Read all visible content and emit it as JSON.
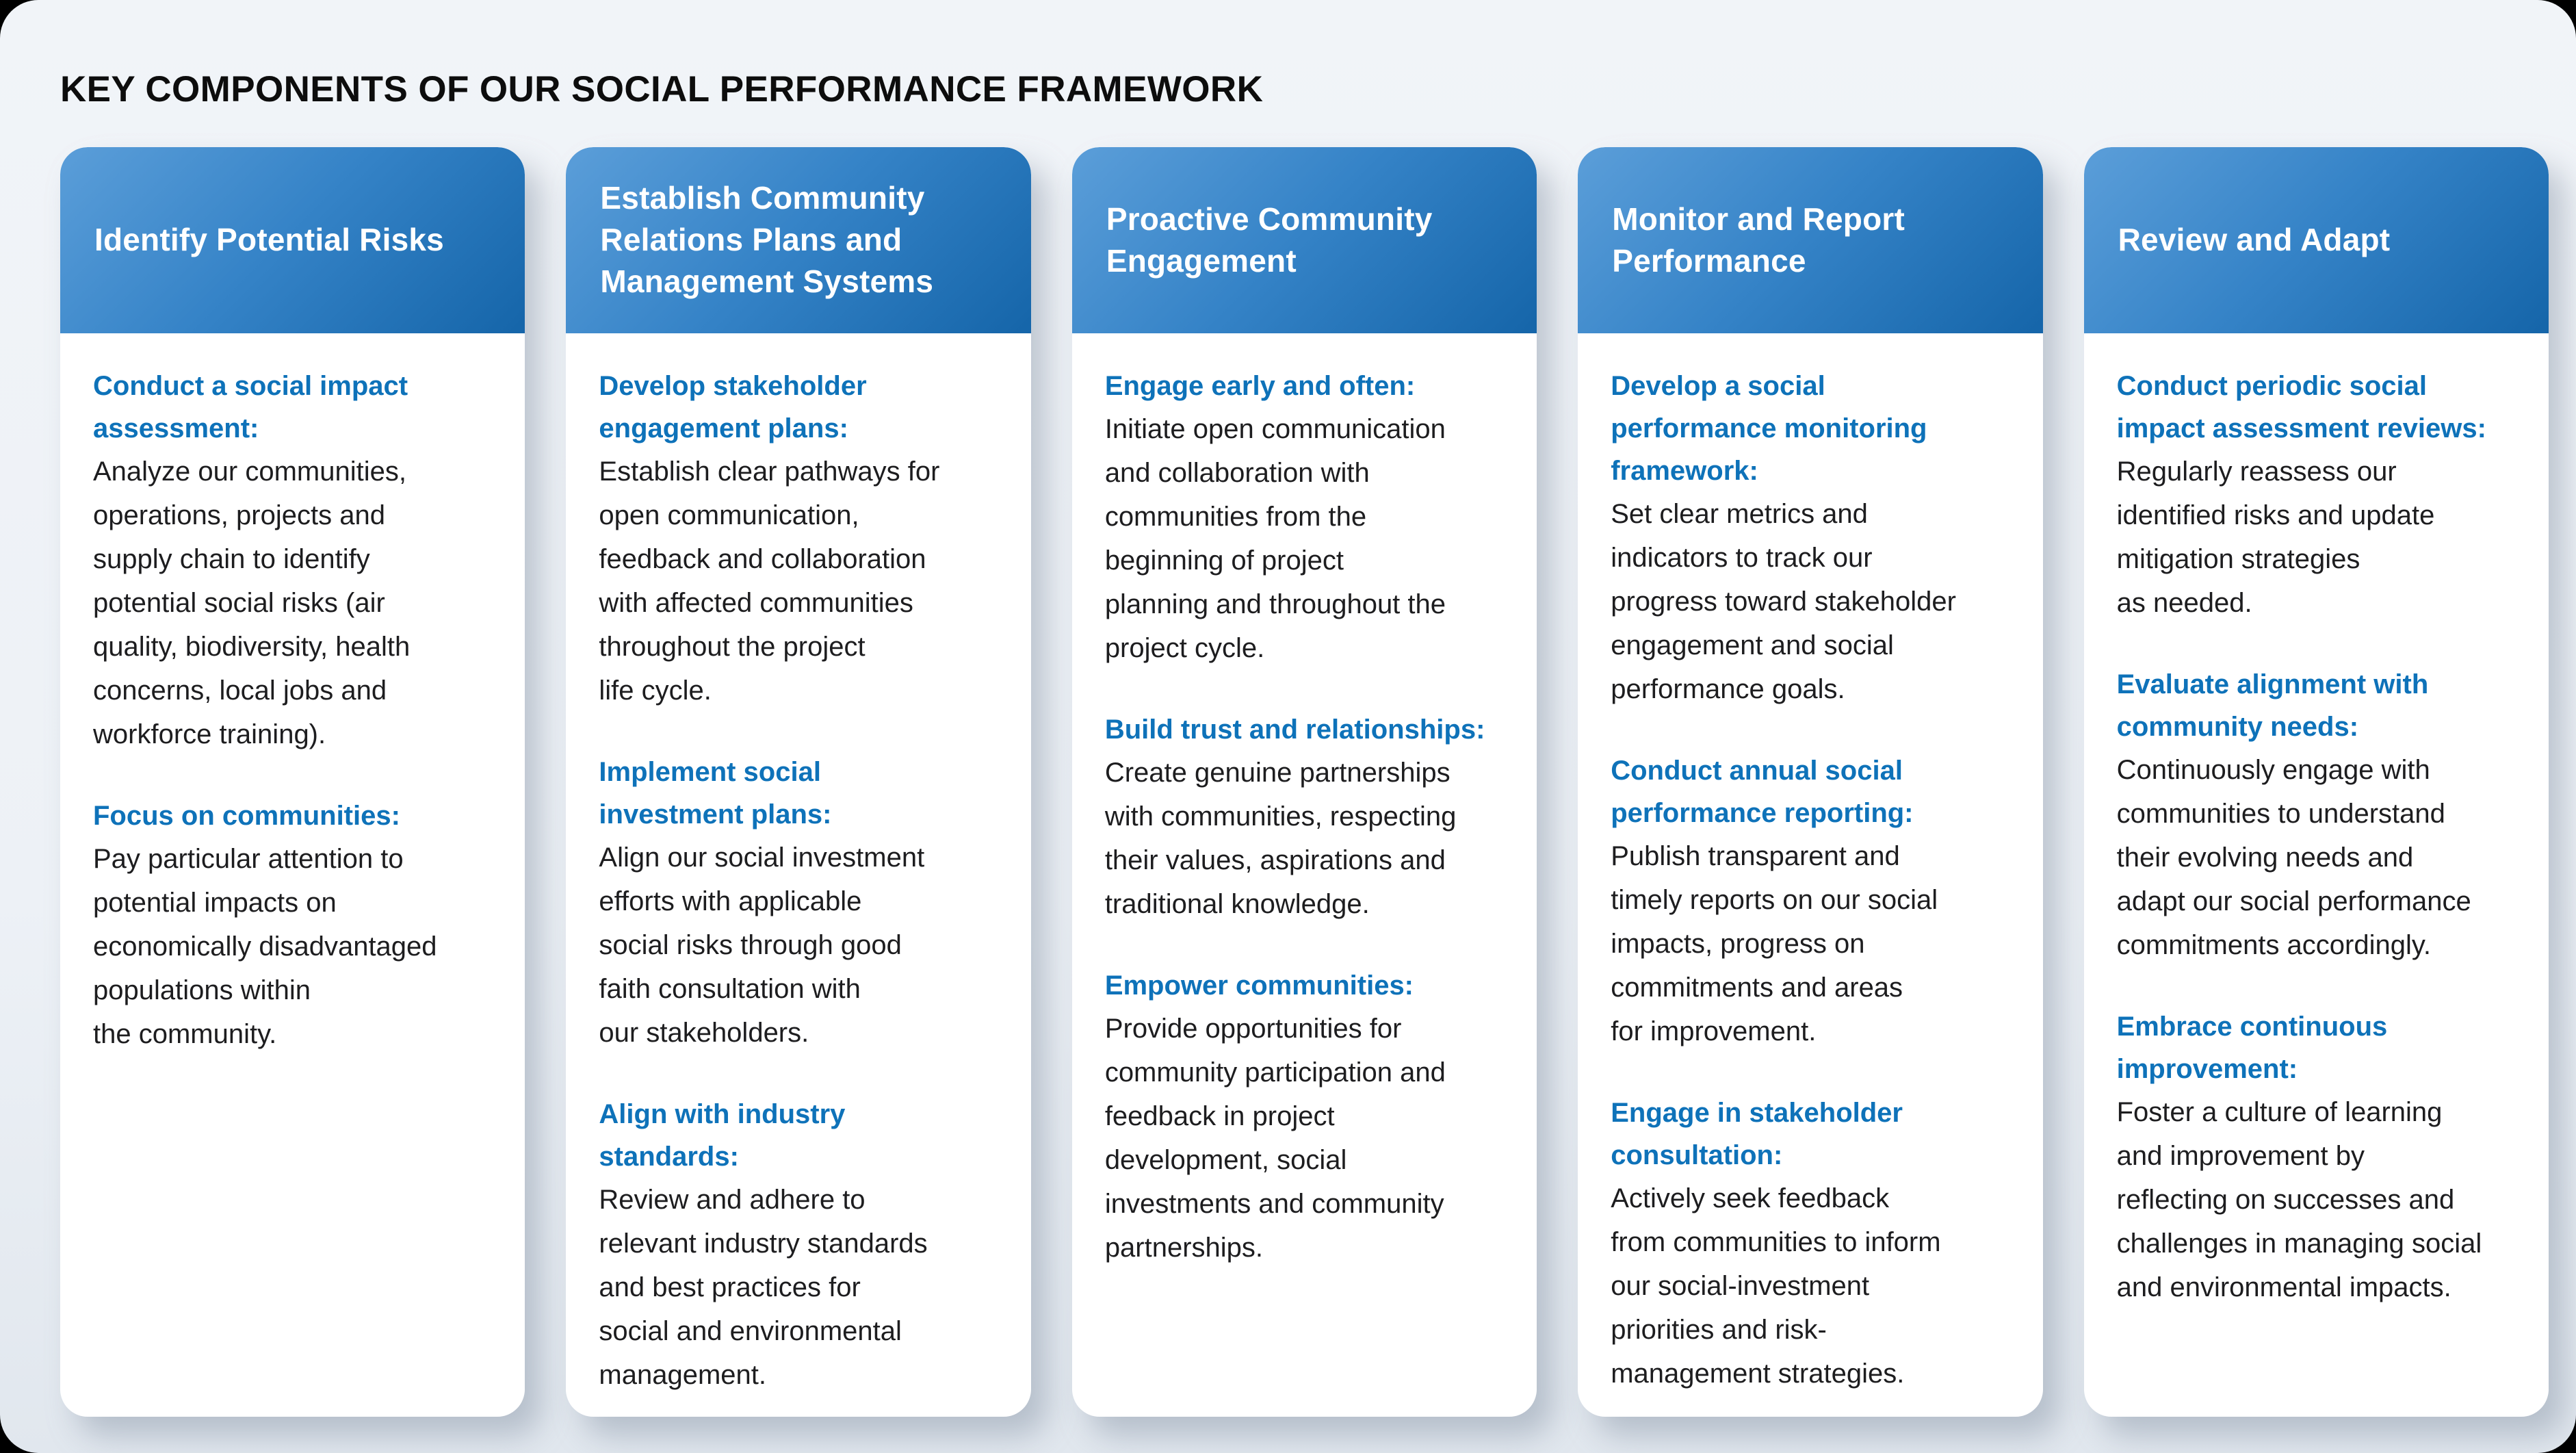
{
  "title": "KEY COMPONENTS OF OUR SOCIAL PERFORMANCE FRAMEWORK",
  "colors": {
    "page_bg_top": "#f1f4f8",
    "page_bg_bottom": "#e1e7ee",
    "card_bg": "#ffffff",
    "header_gradient_start": "#5b9ed9",
    "header_gradient_end": "#1565a9",
    "heading_blue": "#0e72b9",
    "body_text": "#1d1d1f",
    "title_text": "#0d0d0d"
  },
  "columns": [
    {
      "id": "identify-potential-risks",
      "header": "Identify Potential Risks",
      "blocks": [
        {
          "heading": "Conduct a social impact\nassessment:",
          "body": "Analyze our communities,\noperations, projects and\nsupply chain to identify\npotential social risks (air\nquality, biodiversity, health\nconcerns, local jobs and\nworkforce training)."
        },
        {
          "heading": "Focus on communities:",
          "body": "Pay particular attention to\npotential impacts on\neconomically disadvantaged\npopulations within\nthe community."
        }
      ]
    },
    {
      "id": "establish-community-relations",
      "header": "Establish Community\nRelations Plans and\nManagement Systems",
      "blocks": [
        {
          "heading": "Develop stakeholder\nengagement plans:",
          "body": "Establish clear pathways for\nopen communication,\nfeedback and collaboration\nwith affected communities\nthroughout the project\nlife cycle."
        },
        {
          "heading": "Implement social\ninvestment plans:",
          "body": "Align our social investment\nefforts with applicable\nsocial risks through good\nfaith consultation with\nour stakeholders."
        },
        {
          "heading": "Align with industry\nstandards:",
          "body": "Review and adhere to\nrelevant industry standards\nand best practices for\nsocial and environmental\nmanagement."
        }
      ]
    },
    {
      "id": "proactive-community-engagement",
      "header": "Proactive Community\nEngagement",
      "blocks": [
        {
          "heading": "Engage early and often:",
          "body": "Initiate open communication\nand collaboration with\ncommunities from the\nbeginning of project\nplanning and throughout the\nproject cycle."
        },
        {
          "heading": "Build trust and relationships:",
          "body": "Create genuine partnerships\nwith communities, respecting\ntheir values, aspirations and\ntraditional knowledge."
        },
        {
          "heading": "Empower communities:",
          "body": "Provide opportunities for\ncommunity participation and\nfeedback in project\ndevelopment, social\ninvestments and community\npartnerships."
        }
      ]
    },
    {
      "id": "monitor-and-report-performance",
      "header": "Monitor and Report\nPerformance",
      "blocks": [
        {
          "heading": "Develop a social\nperformance monitoring\nframework:",
          "body": "Set clear metrics and\nindicators to track our\nprogress toward stakeholder\nengagement and social\nperformance goals."
        },
        {
          "heading": "Conduct annual social\nperformance reporting:",
          "body": "Publish transparent and\ntimely reports on our social\nimpacts, progress on\ncommitments and areas\nfor improvement."
        },
        {
          "heading": "Engage in stakeholder\nconsultation:",
          "body": "Actively seek feedback\nfrom communities to inform\nour social-investment\npriorities and risk-\nmanagement strategies."
        }
      ]
    },
    {
      "id": "review-and-adapt",
      "header": "Review and Adapt",
      "blocks": [
        {
          "heading": "Conduct periodic social\nimpact assessment reviews:",
          "body": "Regularly reassess our\nidentified risks and update\nmitigation strategies\nas needed."
        },
        {
          "heading": "Evaluate alignment with\ncommunity needs:",
          "body": "Continuously engage with\ncommunities to understand\ntheir evolving needs and\nadapt our social performance\ncommitments accordingly."
        },
        {
          "heading": "Embrace continuous\nimprovement:",
          "body": "Foster a culture of learning\nand improvement by\nreflecting on successes and\nchallenges in managing social\nand environmental impacts."
        }
      ]
    }
  ]
}
